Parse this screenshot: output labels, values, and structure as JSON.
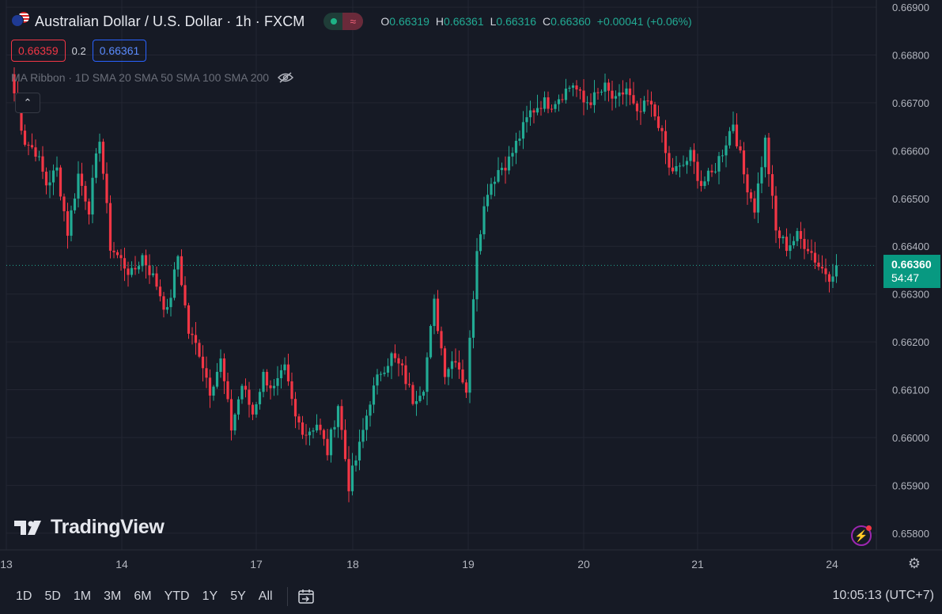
{
  "header": {
    "title": "Australian Dollar / U.S. Dollar · 1h · FXCM",
    "ohlc": {
      "o_label": "O",
      "o": "0.66319",
      "h_label": "H",
      "h": "0.66361",
      "l_label": "L",
      "l": "0.66316",
      "c_label": "C",
      "c": "0.66360",
      "change": "+0.00041 (+0.06%)"
    },
    "sell": "0.66359",
    "spread": "0.2",
    "buy": "0.66361",
    "indicator": "MA Ribbon · 1D SMA 20 SMA 50 SMA 100 SMA 200"
  },
  "logo": "TradingView",
  "last_price": {
    "price": "0.66360",
    "countdown": "54:47"
  },
  "ranges": [
    "1D",
    "5D",
    "1M",
    "3M",
    "6M",
    "YTD",
    "1Y",
    "5Y",
    "All"
  ],
  "clock": "10:05:13 (UTC+7)",
  "colors": {
    "up": "#22ab94",
    "down": "#f23645",
    "background": "#161a25",
    "grid": "#232632"
  },
  "chart_data": {
    "type": "candlestick",
    "yaxis": {
      "side": "right",
      "ticks": [
        "0.66900",
        "0.66800",
        "0.66700",
        "0.66600",
        "0.66500",
        "0.66400",
        "0.66300",
        "0.66200",
        "0.66100",
        "0.66000",
        "0.65900",
        "0.65800"
      ],
      "ylim": [
        0.65765,
        0.66915
      ]
    },
    "xaxis": {
      "ticks": [
        "13",
        "14",
        "17",
        "18",
        "19",
        "20",
        "21",
        "24"
      ]
    },
    "last": 0.6636,
    "anchors": [
      [
        0,
        0.6672
      ],
      [
        3,
        0.6662
      ],
      [
        6,
        0.666
      ],
      [
        9,
        0.6653
      ],
      [
        12,
        0.6656
      ],
      [
        15,
        0.6643
      ],
      [
        18,
        0.6655
      ],
      [
        21,
        0.6648
      ],
      [
        24,
        0.6663
      ],
      [
        27,
        0.664
      ],
      [
        30,
        0.6637
      ],
      [
        33,
        0.6634
      ],
      [
        36,
        0.6638
      ],
      [
        40,
        0.6632
      ],
      [
        43,
        0.6626
      ],
      [
        46,
        0.6638
      ],
      [
        49,
        0.6622
      ],
      [
        52,
        0.6618
      ],
      [
        55,
        0.661
      ],
      [
        58,
        0.6616
      ],
      [
        61,
        0.6602
      ],
      [
        64,
        0.6611
      ],
      [
        67,
        0.6605
      ],
      [
        70,
        0.6613
      ],
      [
        73,
        0.661
      ],
      [
        76,
        0.6614
      ],
      [
        79,
        0.6604
      ],
      [
        82,
        0.6601
      ],
      [
        85,
        0.6603
      ],
      [
        88,
        0.6597
      ],
      [
        91,
        0.6607
      ],
      [
        94,
        0.659
      ],
      [
        97,
        0.6598
      ],
      [
        100,
        0.6608
      ],
      [
        103,
        0.6614
      ],
      [
        106,
        0.6617
      ],
      [
        109,
        0.6614
      ],
      [
        112,
        0.6608
      ],
      [
        115,
        0.6611
      ],
      [
        118,
        0.6628
      ],
      [
        121,
        0.6614
      ],
      [
        124,
        0.6617
      ],
      [
        127,
        0.661
      ],
      [
        130,
        0.664
      ],
      [
        133,
        0.6652
      ],
      [
        136,
        0.6656
      ],
      [
        139,
        0.6658
      ],
      [
        142,
        0.6663
      ],
      [
        145,
        0.6668
      ],
      [
        148,
        0.667
      ],
      [
        151,
        0.667
      ],
      [
        154,
        0.6672
      ],
      [
        157,
        0.6674
      ],
      [
        160,
        0.667
      ],
      [
        163,
        0.6671
      ],
      [
        166,
        0.6673
      ],
      [
        169,
        0.667
      ],
      [
        172,
        0.6673
      ],
      [
        175,
        0.6667
      ],
      [
        178,
        0.667
      ],
      [
        181,
        0.6666
      ],
      [
        184,
        0.6656
      ],
      [
        187,
        0.6656
      ],
      [
        190,
        0.6659
      ],
      [
        193,
        0.6653
      ],
      [
        196,
        0.6655
      ],
      [
        199,
        0.666
      ],
      [
        202,
        0.6666
      ],
      [
        205,
        0.6655
      ],
      [
        208,
        0.6648
      ],
      [
        211,
        0.6662
      ],
      [
        214,
        0.6643
      ],
      [
        217,
        0.664
      ],
      [
        220,
        0.6642
      ],
      [
        223,
        0.664
      ],
      [
        226,
        0.6636
      ],
      [
        229,
        0.6634
      ],
      [
        231,
        0.6636
      ]
    ]
  }
}
